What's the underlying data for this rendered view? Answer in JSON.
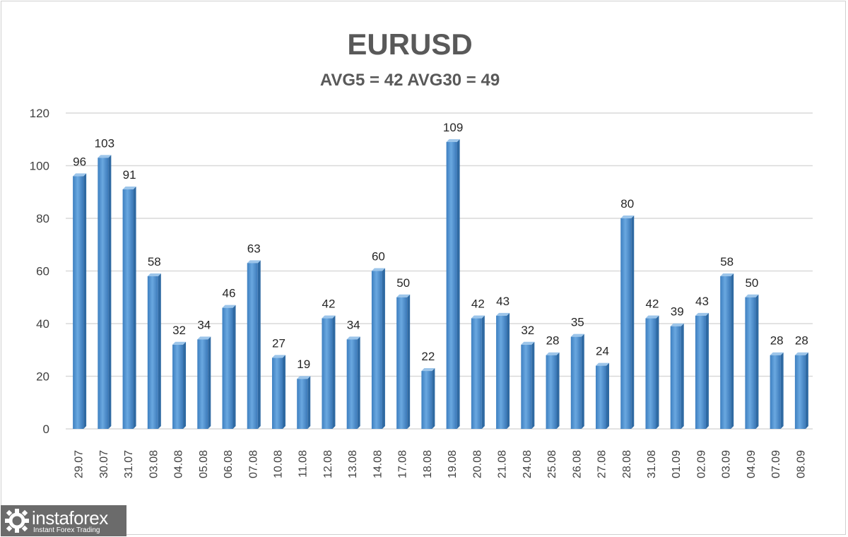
{
  "chart_data": {
    "type": "bar",
    "title": "EURUSD",
    "subtitle": "AVG5 = 42 AVG30 = 49",
    "xlabel": "",
    "ylabel": "",
    "ylim": [
      0,
      120
    ],
    "yticks": [
      "0",
      "20",
      "40",
      "60",
      "80",
      "100",
      "120"
    ],
    "grid": true,
    "categories": [
      "29.07",
      "30.07",
      "31.07",
      "03.08",
      "04.08",
      "05.08",
      "06.08",
      "07.08",
      "10.08",
      "11.08",
      "12.08",
      "13.08",
      "14.08",
      "17.08",
      "18.08",
      "19.08",
      "20.08",
      "21.08",
      "24.08",
      "25.08",
      "26.08",
      "27.08",
      "28.08",
      "31.08",
      "01.09",
      "02.09",
      "03.09",
      "04.09",
      "07.09",
      "08.09"
    ],
    "values": [
      96,
      103,
      91,
      58,
      32,
      34,
      46,
      63,
      27,
      19,
      42,
      34,
      60,
      50,
      22,
      109,
      42,
      43,
      32,
      28,
      35,
      24,
      80,
      42,
      39,
      43,
      58,
      50,
      28,
      28
    ],
    "bar_color": "#5b9bd5"
  },
  "logo": {
    "name": "instaforex",
    "tagline": "Instant Forex Trading"
  }
}
